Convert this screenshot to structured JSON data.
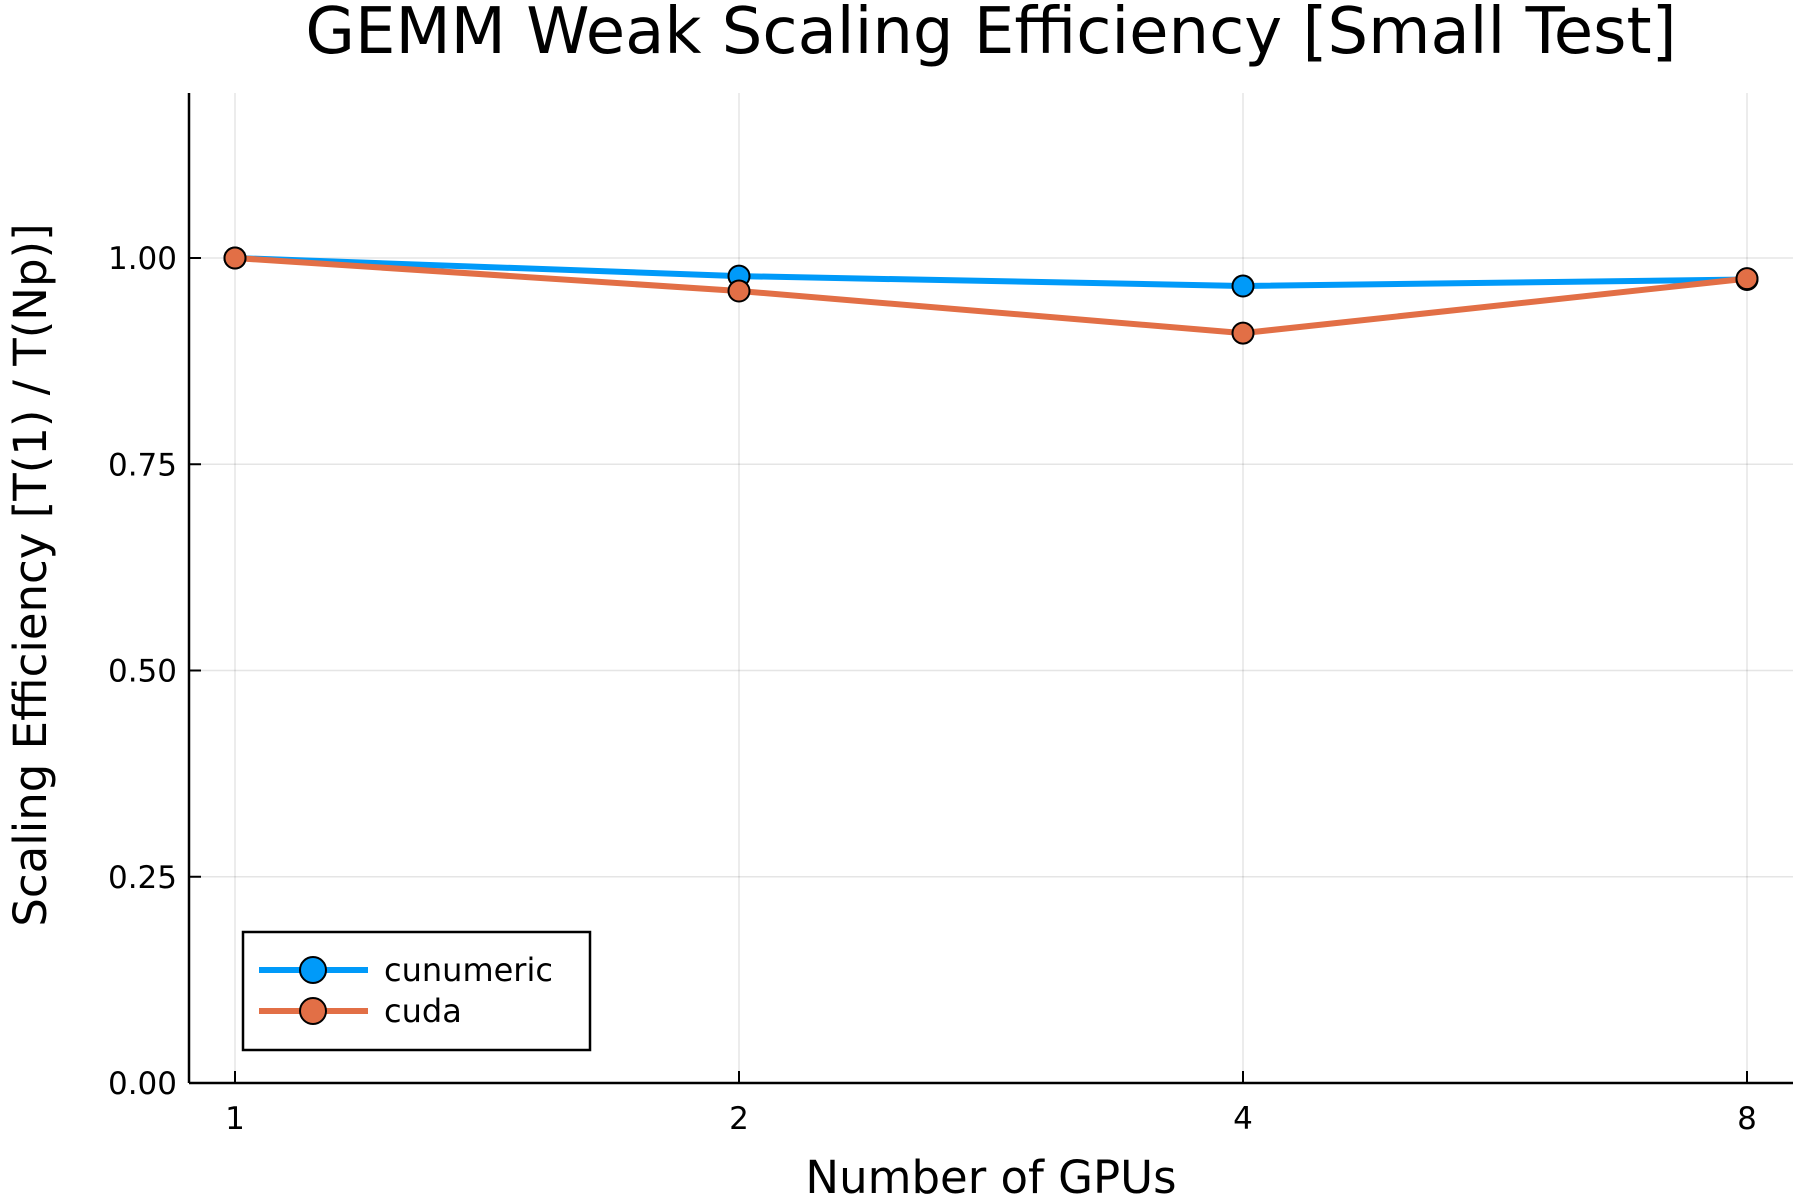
{
  "chart_data": {
    "type": "line",
    "title": "GEMM Weak Scaling Efficiency [Small Test]",
    "xlabel": "Number of GPUs",
    "ylabel": "Scaling Efficiency [T(1) / T(Np)]",
    "x_scale": "log2",
    "categories": [
      "1",
      "2",
      "4",
      "8"
    ],
    "x": [
      1,
      2,
      4,
      8
    ],
    "ylim": [
      0,
      1.2
    ],
    "yticks": [
      0.0,
      0.25,
      0.5,
      0.75,
      1.0
    ],
    "ytick_labels": [
      "0.00",
      "0.25",
      "0.50",
      "0.75",
      "1.00"
    ],
    "grid": true,
    "legend_position": "bottom-left",
    "series": [
      {
        "name": "cunumeric",
        "color": "#009af9",
        "values": [
          1.0,
          0.978,
          0.966,
          0.974
        ]
      },
      {
        "name": "cuda",
        "color": "#e26f46",
        "values": [
          1.0,
          0.96,
          0.909,
          0.975
        ]
      }
    ]
  }
}
